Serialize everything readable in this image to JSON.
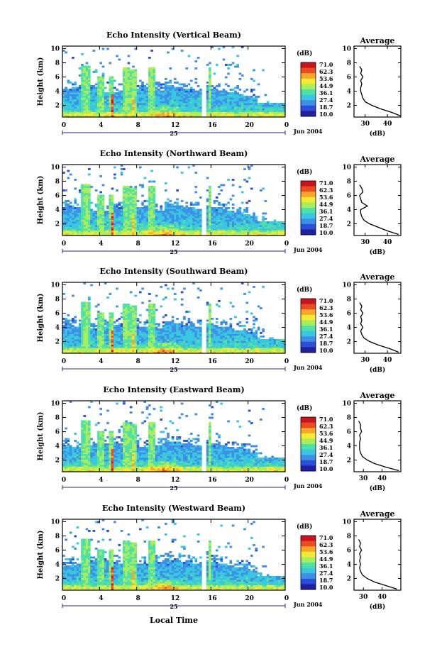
{
  "figure": {
    "xlabel": "Local Time",
    "date_label": "Jun 2004",
    "day_label": "25",
    "colorbar_unit": "(dB)",
    "colorbar_ticks": [
      "71.0",
      "62.3",
      "53.6",
      "44.9",
      "36.1",
      "27.4",
      "18.7",
      "10.0"
    ],
    "colormap": [
      "#2020a0",
      "#2a4fd8",
      "#3f8fe8",
      "#39c6e0",
      "#4fe0a8",
      "#a9ee5a",
      "#f5ea33",
      "#f7a62a",
      "#ea4a24",
      "#c8141e"
    ],
    "profile_title": "Average",
    "profile_xlabel": "(dB)"
  },
  "chart_data": [
    {
      "type": "heatmap",
      "title": "Echo Intensity (Vertical Beam)",
      "ylabel": "Height (km)",
      "xlim": [
        0,
        24
      ],
      "ylim": [
        0,
        10
      ],
      "xticks": [
        "0",
        "4",
        "8",
        "12",
        "16",
        "20",
        "0"
      ],
      "yticks": [
        "2",
        "4",
        "6",
        "8",
        "10"
      ],
      "data_gap_hours": [
        15.0,
        15.4
      ],
      "colorbar_range": [
        10.0,
        71.0
      ],
      "profile": {
        "xlabel": "(dB)",
        "xticks": [
          "30",
          "40"
        ],
        "xlim": [
          25,
          46
        ],
        "heights": [
          0.5,
          1,
          1.5,
          2,
          2.5,
          3,
          3.5,
          4,
          4.5,
          5,
          5.5,
          6,
          6.5,
          7,
          7.5
        ],
        "values": [
          46,
          42,
          37,
          33,
          30,
          29,
          28.5,
          28,
          28,
          28.5,
          28,
          29,
          28,
          28.5,
          27.5
        ]
      }
    },
    {
      "type": "heatmap",
      "title": "Echo Intensity (Northward Beam)",
      "ylabel": "Height (km)",
      "xlim": [
        0,
        24
      ],
      "ylim": [
        0,
        10
      ],
      "xticks": [
        "0",
        "4",
        "8",
        "12",
        "16",
        "20",
        "0"
      ],
      "yticks": [
        "2",
        "4",
        "6",
        "8",
        "10"
      ],
      "data_gap_hours": [
        15.0,
        15.4
      ],
      "colorbar_range": [
        10.0,
        71.0
      ],
      "profile": {
        "xlabel": "(dB)",
        "xticks": [
          "30",
          "40"
        ],
        "xlim": [
          25,
          46
        ],
        "heights": [
          0.5,
          1,
          1.5,
          2,
          2.5,
          3,
          3.5,
          4,
          4.5,
          5,
          5.5,
          6,
          6.5,
          7,
          7.5
        ],
        "values": [
          45,
          40,
          36,
          32,
          29.5,
          28.5,
          28,
          28,
          31,
          28.5,
          28,
          27.5,
          29,
          28.5,
          27.5
        ]
      }
    },
    {
      "type": "heatmap",
      "title": "Echo Intensity (Southward Beam)",
      "ylabel": "Height (km)",
      "xlim": [
        0,
        24
      ],
      "ylim": [
        0,
        10
      ],
      "xticks": [
        "0",
        "4",
        "8",
        "12",
        "16",
        "20",
        "0"
      ],
      "yticks": [
        "2",
        "4",
        "6",
        "8",
        "10"
      ],
      "data_gap_hours": [
        15.0,
        15.4
      ],
      "colorbar_range": [
        10.0,
        71.0
      ],
      "profile": {
        "xlabel": "(dB)",
        "xticks": [
          "30",
          "40"
        ],
        "xlim": [
          25,
          46
        ],
        "heights": [
          0.5,
          1,
          1.5,
          2,
          2.5,
          3,
          3.5,
          4,
          4.5,
          5,
          5.5,
          6,
          6.5,
          7,
          7.5
        ],
        "values": [
          45,
          41,
          36,
          32,
          29.5,
          28.5,
          28,
          29,
          28,
          28.5,
          28,
          29,
          28,
          28.5,
          27.5
        ]
      }
    },
    {
      "type": "heatmap",
      "title": "Echo Intensity (Eastward Beam)",
      "ylabel": "Height (km)",
      "xlim": [
        0,
        24
      ],
      "ylim": [
        0,
        10
      ],
      "xticks": [
        "0",
        "4",
        "8",
        "12",
        "16",
        "20",
        "0"
      ],
      "yticks": [
        "2",
        "4",
        "6",
        "8",
        "10"
      ],
      "data_gap_hours": [
        15.0,
        15.4
      ],
      "colorbar_range": [
        10.0,
        71.0
      ],
      "profile": {
        "xlabel": "(dB)",
        "xticks": [
          "30",
          "40"
        ],
        "xlim": [
          25,
          50
        ],
        "heights": [
          0.5,
          1,
          1.5,
          2,
          2.5,
          3,
          3.5,
          4,
          4.5,
          5,
          5.5,
          6,
          6.5,
          7,
          7.5
        ],
        "values": [
          49,
          42,
          36,
          32,
          29.5,
          28.5,
          28,
          28,
          28,
          28.5,
          28,
          29,
          28.5,
          28.5,
          27.5
        ]
      }
    },
    {
      "type": "heatmap",
      "title": "Echo Intensity (Westward Beam)",
      "ylabel": "Height (km)",
      "xlim": [
        0,
        24
      ],
      "ylim": [
        0,
        10
      ],
      "xticks": [
        "0",
        "4",
        "8",
        "12",
        "16",
        "20",
        "0"
      ],
      "yticks": [
        "2",
        "4",
        "6",
        "8",
        "10"
      ],
      "data_gap_hours": [
        15.0,
        15.4
      ],
      "colorbar_range": [
        10.0,
        71.0
      ],
      "profile": {
        "xlabel": "(dB)",
        "xticks": [
          "30",
          "40"
        ],
        "xlim": [
          25,
          50
        ],
        "heights": [
          0.5,
          1,
          1.5,
          2,
          2.5,
          3,
          3.5,
          4,
          4.5,
          5,
          5.5,
          6,
          6.5,
          7,
          7.5
        ],
        "values": [
          48,
          42,
          36,
          32,
          29.5,
          28.5,
          28,
          28.5,
          28,
          28.5,
          28,
          29,
          28,
          28.5,
          27.5
        ]
      }
    }
  ]
}
